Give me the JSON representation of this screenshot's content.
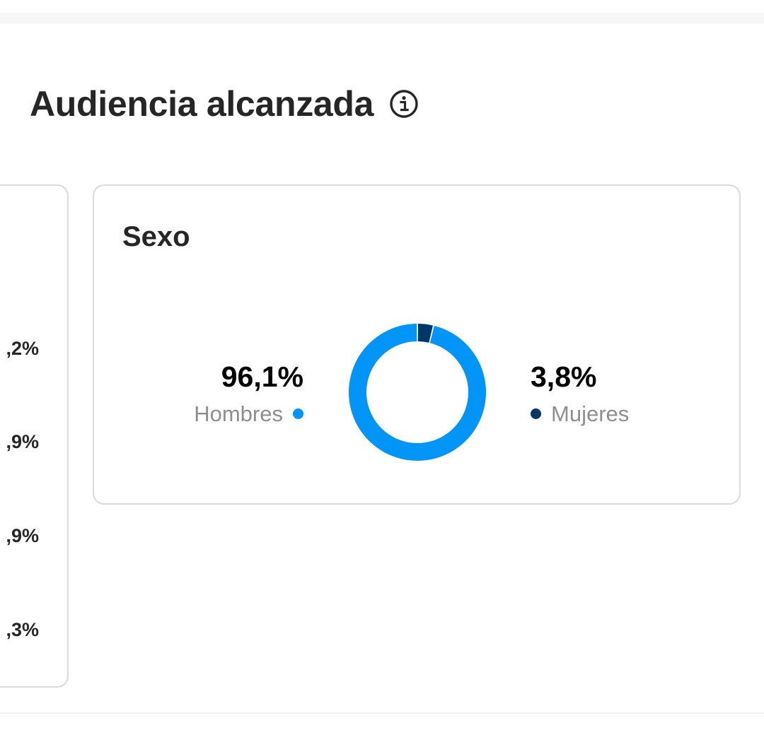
{
  "section": {
    "title": "Audiencia alcanzada",
    "info_icon": "info-circle-icon"
  },
  "left_card": {
    "values": [
      ",2%",
      ",9%",
      ",9%",
      ",3%"
    ]
  },
  "gender_card": {
    "title": "Sexo",
    "men": {
      "percent": "96,1%",
      "label": "Hombres"
    },
    "women": {
      "percent": "3,8%",
      "label": "Mujeres"
    }
  },
  "colors": {
    "men": "#0095f6",
    "women": "#00376b",
    "text": "#262626",
    "muted": "#8e8e8e",
    "border": "#dbdbdb"
  },
  "chart_data": {
    "type": "pie",
    "categories": [
      "Hombres",
      "Mujeres"
    ],
    "values": [
      96.1,
      3.8
    ]
  }
}
